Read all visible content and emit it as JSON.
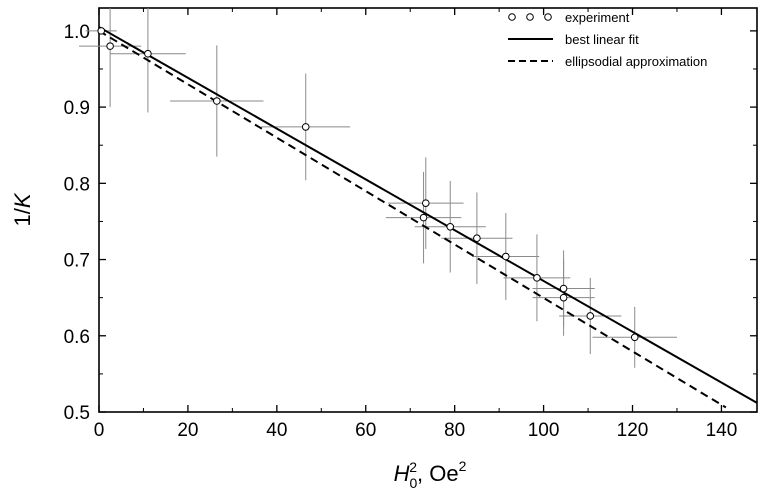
{
  "chart_data": {
    "type": "scatter",
    "xlabel": "H₀², Oe²",
    "ylabel": "1/K",
    "xlim": [
      0,
      148
    ],
    "ylim": [
      0.5,
      1.03
    ],
    "xticks": [
      0,
      20,
      40,
      60,
      80,
      100,
      120,
      140
    ],
    "yticks": [
      0.5,
      0.6,
      0.7,
      0.8,
      0.9,
      1.0
    ],
    "xtick_labels": [
      "0",
      "20",
      "40",
      "60",
      "80",
      "100",
      "120",
      "140"
    ],
    "ytick_labels": [
      "0.5",
      "0.6",
      "0.7",
      "0.8",
      "0.9",
      "1.0"
    ],
    "grid": false,
    "legend_position": "top-right",
    "legend": {
      "experiment": "experiment",
      "fit": "best linear fit",
      "approx": "ellipsodial approximation"
    },
    "series": [
      {
        "name": "experiment",
        "kind": "points_with_errorbars",
        "points": [
          {
            "x": 0.5,
            "y": 1.0,
            "xerr": 3.5,
            "yerr": 0
          },
          {
            "x": 2.5,
            "y": 0.98,
            "xerr": 7,
            "yerr": 0.08
          },
          {
            "x": 11,
            "y": 0.97,
            "xerr": 8.5,
            "yerr": 0.077
          },
          {
            "x": 26.5,
            "y": 0.908,
            "xerr": 10.5,
            "yerr": 0.073
          },
          {
            "x": 46.5,
            "y": 0.874,
            "xerr": 10,
            "yerr": 0.07
          },
          {
            "x": 73,
            "y": 0.755,
            "xerr": 8.5,
            "yerr": 0.06
          },
          {
            "x": 73.5,
            "y": 0.774,
            "xerr": 8.5,
            "yerr": 0.06
          },
          {
            "x": 79,
            "y": 0.743,
            "xerr": 8,
            "yerr": 0.06
          },
          {
            "x": 85,
            "y": 0.728,
            "xerr": 8,
            "yerr": 0.06
          },
          {
            "x": 91.5,
            "y": 0.704,
            "xerr": 7.5,
            "yerr": 0.057
          },
          {
            "x": 98.5,
            "y": 0.676,
            "xerr": 7.5,
            "yerr": 0.057
          },
          {
            "x": 104.5,
            "y": 0.662,
            "xerr": 7,
            "yerr": 0.05
          },
          {
            "x": 104.5,
            "y": 0.65,
            "xerr": 7,
            "yerr": 0.05
          },
          {
            "x": 110.5,
            "y": 0.626,
            "xerr": 7,
            "yerr": 0.05
          },
          {
            "x": 120.5,
            "y": 0.598,
            "xerr": 9.5,
            "yerr": 0.04
          }
        ]
      },
      {
        "name": "best linear fit",
        "kind": "line_solid",
        "x": [
          0,
          148
        ],
        "y": [
          1.005,
          0.512
        ]
      },
      {
        "name": "ellipsodial approximation",
        "kind": "line_dashed",
        "x": [
          0,
          141
        ],
        "y": [
          1.0,
          0.506
        ]
      }
    ]
  }
}
